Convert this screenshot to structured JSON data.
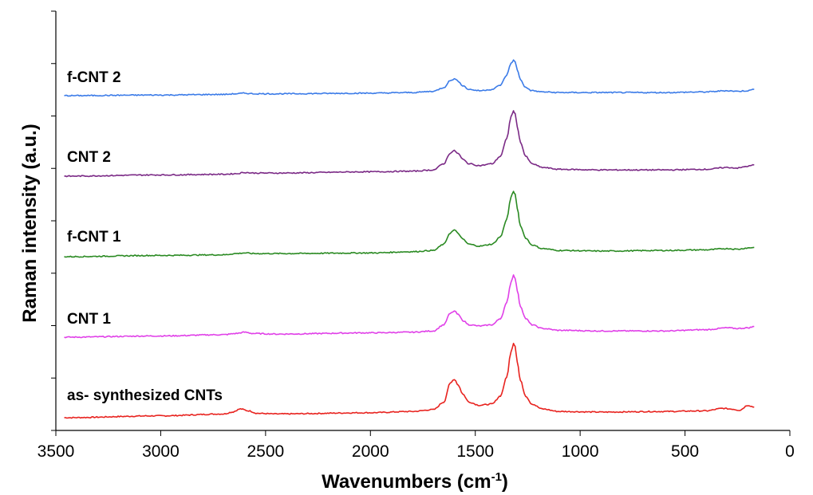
{
  "chart_data": {
    "type": "line",
    "title": "",
    "xlabel": "Wavenumbers (cm",
    "xlabel_sup": "-1",
    "xlabel_end": ")",
    "ylabel": "Raman intensity (a.u.)",
    "xlim": [
      3500,
      0
    ],
    "x_reversed": true,
    "x_ticks": [
      3500,
      3000,
      2500,
      2000,
      1500,
      1000,
      500,
      0
    ],
    "y_ticks_unlabeled": 8,
    "grid": false,
    "legend": "inline labels",
    "series": [
      {
        "name": "as- synthesized CNTs",
        "color": "#e8231f",
        "baseline": 0.0,
        "x": [
          3460,
          3000,
          2700,
          2660,
          2620,
          2580,
          2540,
          2450,
          2000,
          1800,
          1700,
          1650,
          1620,
          1600,
          1580,
          1560,
          1530,
          1480,
          1420,
          1380,
          1350,
          1330,
          1318,
          1310,
          1300,
          1285,
          1260,
          1230,
          1180,
          1100,
          900,
          600,
          400,
          320,
          280,
          240,
          200,
          170
        ],
        "y": [
          0.0,
          0.03,
          0.06,
          0.09,
          0.14,
          0.11,
          0.07,
          0.06,
          0.08,
          0.1,
          0.13,
          0.25,
          0.55,
          0.62,
          0.52,
          0.38,
          0.25,
          0.2,
          0.22,
          0.35,
          0.65,
          1.05,
          1.2,
          1.15,
          0.9,
          0.6,
          0.35,
          0.22,
          0.14,
          0.1,
          0.09,
          0.1,
          0.11,
          0.15,
          0.14,
          0.12,
          0.2,
          0.17
        ]
      },
      {
        "name": "CNT 1",
        "color": "#e040e8",
        "baseline": 1.0,
        "x": [
          3460,
          3000,
          2700,
          2640,
          2600,
          2560,
          2450,
          2000,
          1800,
          1700,
          1650,
          1620,
          1600,
          1580,
          1560,
          1530,
          1480,
          1420,
          1380,
          1350,
          1330,
          1318,
          1310,
          1300,
          1285,
          1260,
          1230,
          1180,
          1100,
          900,
          600,
          400,
          300,
          250,
          200,
          170
        ],
        "y": [
          0.0,
          0.02,
          0.04,
          0.06,
          0.08,
          0.06,
          0.05,
          0.07,
          0.08,
          0.1,
          0.2,
          0.38,
          0.42,
          0.36,
          0.27,
          0.2,
          0.18,
          0.2,
          0.3,
          0.55,
          0.88,
          1.0,
          0.95,
          0.75,
          0.5,
          0.3,
          0.2,
          0.14,
          0.11,
          0.1,
          0.1,
          0.12,
          0.15,
          0.14,
          0.15,
          0.17
        ]
      },
      {
        "name": "f-CNT 1",
        "color": "#2a8a22",
        "baseline": 2.0,
        "x": [
          3460,
          3000,
          2700,
          2640,
          2600,
          2560,
          2450,
          2000,
          1800,
          1700,
          1650,
          1620,
          1600,
          1580,
          1560,
          1530,
          1480,
          1420,
          1380,
          1350,
          1330,
          1318,
          1310,
          1300,
          1285,
          1260,
          1230,
          1180,
          1100,
          900,
          600,
          400,
          300,
          250,
          200,
          170
        ],
        "y": [
          0.0,
          0.02,
          0.03,
          0.05,
          0.06,
          0.05,
          0.05,
          0.06,
          0.08,
          0.1,
          0.2,
          0.38,
          0.43,
          0.37,
          0.28,
          0.2,
          0.17,
          0.2,
          0.32,
          0.6,
          0.95,
          1.05,
          1.0,
          0.78,
          0.5,
          0.3,
          0.19,
          0.13,
          0.1,
          0.09,
          0.1,
          0.11,
          0.13,
          0.12,
          0.14,
          0.15
        ]
      },
      {
        "name": "CNT 2",
        "color": "#7b2a86",
        "baseline": 3.0,
        "x": [
          3460,
          3000,
          2700,
          2640,
          2600,
          2560,
          2450,
          2000,
          1800,
          1700,
          1650,
          1620,
          1600,
          1580,
          1560,
          1530,
          1480,
          1420,
          1380,
          1350,
          1330,
          1318,
          1310,
          1300,
          1285,
          1260,
          1230,
          1180,
          1100,
          900,
          600,
          400,
          300,
          250,
          200,
          170
        ],
        "y": [
          0.0,
          0.02,
          0.03,
          0.04,
          0.06,
          0.05,
          0.05,
          0.07,
          0.08,
          0.1,
          0.2,
          0.37,
          0.41,
          0.36,
          0.27,
          0.2,
          0.17,
          0.2,
          0.32,
          0.6,
          0.95,
          1.05,
          1.0,
          0.8,
          0.55,
          0.32,
          0.2,
          0.14,
          0.11,
          0.1,
          0.1,
          0.11,
          0.14,
          0.13,
          0.16,
          0.18
        ]
      },
      {
        "name": "f-CNT 2",
        "color": "#3b7be8",
        "baseline": 4.0,
        "x": [
          3460,
          3000,
          2700,
          2640,
          2600,
          2560,
          2450,
          2000,
          1800,
          1700,
          1650,
          1620,
          1600,
          1580,
          1560,
          1530,
          1480,
          1420,
          1380,
          1350,
          1330,
          1318,
          1310,
          1300,
          1285,
          1260,
          1230,
          1180,
          1100,
          900,
          600,
          400,
          300,
          250,
          200,
          170
        ],
        "y": [
          0.0,
          0.01,
          0.02,
          0.03,
          0.04,
          0.03,
          0.03,
          0.04,
          0.05,
          0.07,
          0.13,
          0.24,
          0.27,
          0.23,
          0.16,
          0.1,
          0.08,
          0.1,
          0.17,
          0.33,
          0.52,
          0.57,
          0.54,
          0.42,
          0.26,
          0.13,
          0.08,
          0.06,
          0.05,
          0.05,
          0.05,
          0.06,
          0.08,
          0.07,
          0.08,
          0.1
        ]
      }
    ]
  }
}
